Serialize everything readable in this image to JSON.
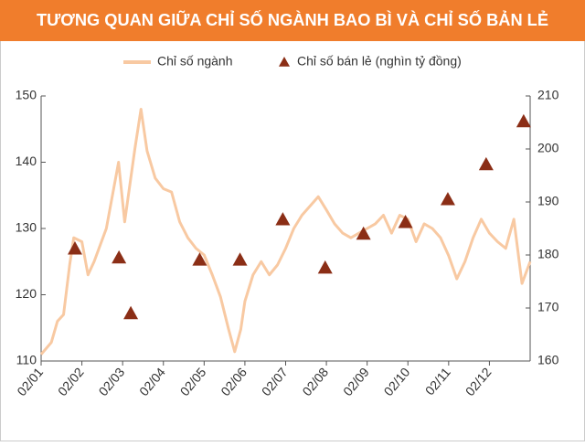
{
  "chart_data": {
    "type": "combo",
    "title": "TƯƠNG QUAN GIỮA CHỈ SỐ NGÀNH BAO BÌ VÀ CHỈ SỐ BẢN LẺ",
    "xlim": [
      0,
      12
    ],
    "xticks": [
      {
        "value": 0,
        "label": "02/01"
      },
      {
        "value": 1,
        "label": "02/02"
      },
      {
        "value": 2,
        "label": "02/03"
      },
      {
        "value": 3,
        "label": "02/04"
      },
      {
        "value": 4,
        "label": "02/05"
      },
      {
        "value": 5,
        "label": "02/06"
      },
      {
        "value": 6,
        "label": "02/07"
      },
      {
        "value": 7,
        "label": "02/08"
      },
      {
        "value": 8,
        "label": "02/09"
      },
      {
        "value": 9,
        "label": "02/10"
      },
      {
        "value": 10,
        "label": "02/11"
      },
      {
        "value": 11,
        "label": "02/12"
      }
    ],
    "ylim": [
      110,
      150
    ],
    "yticks": [
      110,
      120,
      130,
      140,
      150
    ],
    "y2lim": [
      160,
      210
    ],
    "y2ticks": [
      160,
      170,
      180,
      190,
      200,
      210
    ],
    "grid": false,
    "series": [
      {
        "name": "Chỉ số ngành",
        "type": "line",
        "color": "#f8c9a2",
        "x": [
          0,
          0.25,
          0.4,
          0.55,
          0.7,
          0.8,
          1.0,
          1.15,
          1.3,
          1.6,
          1.9,
          2.05,
          2.3,
          2.45,
          2.6,
          2.8,
          3.0,
          3.2,
          3.4,
          3.6,
          3.8,
          4.0,
          4.2,
          4.4,
          4.6,
          4.75,
          4.9,
          5.0,
          5.2,
          5.4,
          5.6,
          5.8,
          6.0,
          6.2,
          6.4,
          6.6,
          6.8,
          7.0,
          7.2,
          7.4,
          7.6,
          7.8,
          8.0,
          8.2,
          8.4,
          8.6,
          8.8,
          9.0,
          9.2,
          9.4,
          9.6,
          9.8,
          10.0,
          10.2,
          10.4,
          10.6,
          10.8,
          11.0,
          11.2,
          11.4,
          11.6,
          11.8,
          12.0
        ],
        "values": [
          111,
          112.8,
          116,
          117,
          124.5,
          128.6,
          128,
          123,
          125,
          130,
          140,
          131,
          142,
          148,
          141.7,
          137.6,
          136,
          135.5,
          131,
          128.6,
          127,
          126,
          123,
          119.7,
          114.8,
          111.4,
          114.8,
          119,
          123,
          125,
          123,
          124.5,
          127,
          130,
          132,
          133.4,
          134.8,
          132.8,
          130.7,
          129.3,
          128.6,
          129.3,
          130,
          130.7,
          132,
          129.3,
          132,
          131.4,
          128,
          130.7,
          130,
          128.6,
          125.9,
          122.4,
          125,
          128.6,
          131.4,
          129.3,
          128,
          127,
          131.4,
          121.7,
          125
        ]
      },
      {
        "name": "Chỉ số bán lẻ (nghìn tỷ đồng)",
        "type": "scatter",
        "axis": "y2",
        "color": "#8b2e16",
        "x": [
          0.83,
          1.91,
          2.2,
          3.89,
          4.88,
          5.93,
          6.97,
          7.91,
          8.94,
          9.98,
          10.92,
          11.84
        ],
        "values": [
          181.2,
          179.5,
          169,
          179.1,
          179.1,
          186.7,
          177.6,
          184,
          186.2,
          190.5,
          197.1,
          205.2
        ]
      }
    ]
  }
}
